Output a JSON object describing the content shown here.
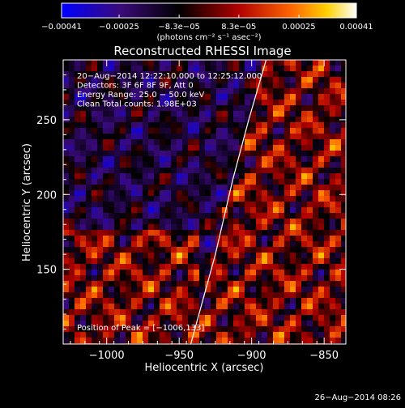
{
  "chart_data": {
    "type": "heatmap",
    "title": "Reconstructed RHESSI Image",
    "xlabel": "Heliocentric X (arcsec)",
    "ylabel": "Heliocentric Y (arcsec)",
    "xlim": [
      -1030,
      -835
    ],
    "ylim": [
      100,
      290
    ],
    "x_ticks": [
      -1000,
      -950,
      -900,
      -850
    ],
    "x_tick_labels": [
      "−1000",
      "−950",
      "−900",
      "−850"
    ],
    "y_ticks": [
      150,
      200,
      250
    ],
    "y_tick_labels": [
      "150",
      "200",
      "250"
    ],
    "colorbar": {
      "range": [
        -0.00041,
        0.00041
      ],
      "tick_values": [
        -0.00041,
        -0.00025,
        -8.3e-05,
        8.3e-05,
        0.00025,
        0.00041
      ],
      "tick_labels": [
        "−0.00041",
        "−0.00025",
        "−8.3e−05",
        "8.3e−05",
        "0.00025",
        "0.00041"
      ],
      "unit_label": "(photons cm⁻² s⁻¹ asec⁻²)",
      "colors": [
        "#0000ff",
        "#3a0a7a",
        "#000000",
        "#b00000",
        "#ff6600",
        "#ffd000",
        "#ffffff"
      ]
    },
    "annotations": [
      "20−Aug−2014 12:22:10.000 to 12:25:12.000",
      "Detectors: 3F 6F 8F 9F, Att 0",
      "Energy Range: 25.0 − 50.0 keV",
      "Clean     Total counts: 1.98E+03"
    ],
    "peak_label": "Position of Peak = [−1006,133]",
    "limb_curve": [
      [
        -942,
        100
      ],
      [
        -925,
        160
      ],
      [
        -913,
        210
      ],
      [
        -902,
        250
      ],
      [
        -890,
        290
      ]
    ],
    "grid": false,
    "colorbar_placement": "top"
  },
  "footer": {
    "date": "26−Aug−2014 08:26"
  }
}
